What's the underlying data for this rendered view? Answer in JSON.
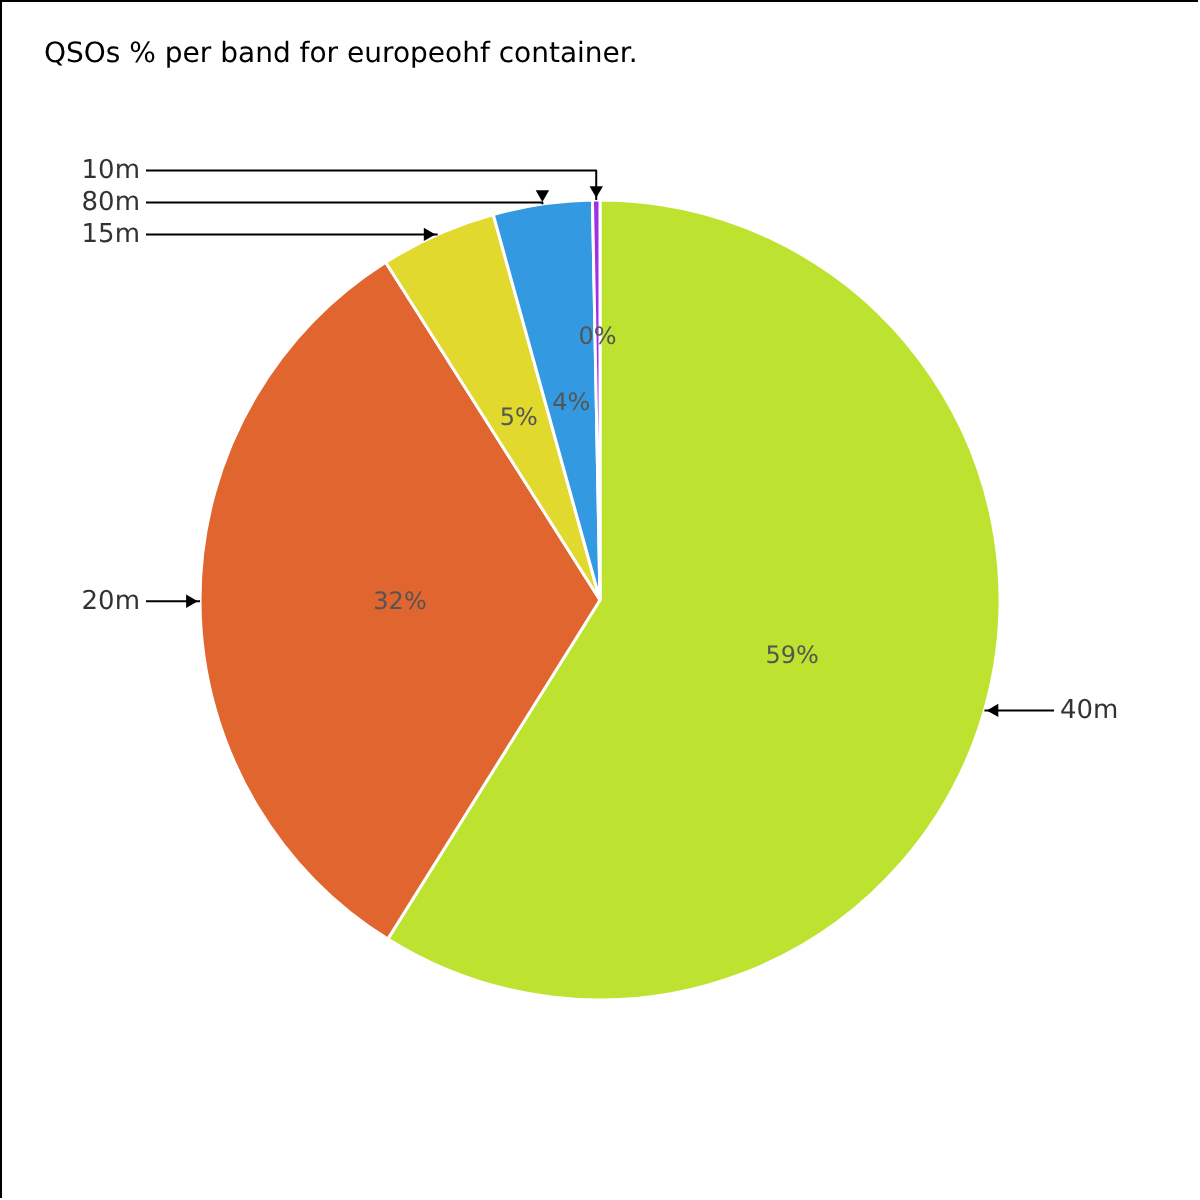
{
  "chart_data": {
    "type": "pie",
    "title": "QSOs % per band for europeohf container.",
    "categories": [
      "40m",
      "20m",
      "15m",
      "80m",
      "10m"
    ],
    "values": [
      58.9,
      32.1,
      4.7,
      4.0,
      0.3
    ],
    "value_labels": [
      "59%",
      "32%",
      "5%",
      "4%",
      "0%"
    ],
    "colors": [
      "#bde22f",
      "#e0652f",
      "#e2d92f",
      "#3399e0",
      "#a030e0"
    ]
  }
}
